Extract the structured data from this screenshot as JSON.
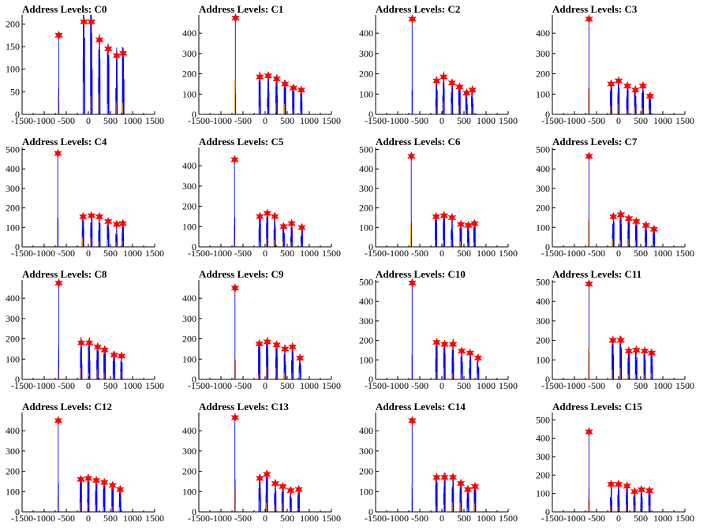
{
  "colors": {
    "histogram": "#0000ff",
    "secondary": "#ff8800",
    "marker": "#ff0000",
    "axis": "#000000"
  },
  "chart_data": [
    {
      "type": "bar",
      "title": "Address Levels: C0",
      "xlim": [
        -1500,
        1500
      ],
      "ylim": [
        0,
        220
      ],
      "xticks": [
        "-1500",
        "-1000",
        "-500",
        "0",
        "500",
        "1000",
        "1500"
      ],
      "yticks": [
        "0",
        "50",
        "100",
        "150",
        "200"
      ],
      "peaks": [
        [
          -670,
          175
        ],
        [
          -100,
          205
        ],
        [
          70,
          205
        ],
        [
          250,
          165
        ],
        [
          450,
          145
        ],
        [
          640,
          130
        ],
        [
          790,
          135
        ]
      ]
    },
    {
      "type": "bar",
      "title": "Address Levels: C1",
      "xlim": [
        -1500,
        1500
      ],
      "ylim": [
        0,
        490
      ],
      "xticks": [
        "-1500",
        "-1000",
        "-500",
        "0",
        "500",
        "1000",
        "1500"
      ],
      "yticks": [
        "0",
        "100",
        "200",
        "300",
        "400"
      ],
      "peaks": [
        [
          -670,
          475
        ],
        [
          -120,
          185
        ],
        [
          70,
          190
        ],
        [
          260,
          175
        ],
        [
          450,
          150
        ],
        [
          640,
          130
        ],
        [
          820,
          120
        ]
      ]
    },
    {
      "type": "bar",
      "title": "Address Levels: C2",
      "xlim": [
        -1500,
        1500
      ],
      "ylim": [
        0,
        490
      ],
      "xticks": [
        "-1500",
        "-1000",
        "-500",
        "0",
        "500",
        "1000",
        "1500"
      ],
      "yticks": [
        "0",
        "100",
        "200",
        "300",
        "400"
      ],
      "peaks": [
        [
          -670,
          470
        ],
        [
          -120,
          165
        ],
        [
          40,
          185
        ],
        [
          230,
          155
        ],
        [
          400,
          135
        ],
        [
          560,
          105
        ],
        [
          690,
          120
        ]
      ]
    },
    {
      "type": "bar",
      "title": "Address Levels: C3",
      "xlim": [
        -1500,
        1500
      ],
      "ylim": [
        0,
        490
      ],
      "xticks": [
        "-1500",
        "-1000",
        "-500",
        "0",
        "500",
        "1000",
        "1500"
      ],
      "yticks": [
        "0",
        "100",
        "200",
        "300",
        "400"
      ],
      "peaks": [
        [
          -670,
          470
        ],
        [
          -170,
          150
        ],
        [
          0,
          165
        ],
        [
          200,
          140
        ],
        [
          380,
          120
        ],
        [
          550,
          140
        ],
        [
          710,
          90
        ]
      ]
    },
    {
      "type": "bar",
      "title": "Address Levels: C4",
      "xlim": [
        -1500,
        1500
      ],
      "ylim": [
        0,
        510
      ],
      "xticks": [
        "-1500",
        "-1000",
        "-500",
        "0",
        "500",
        "1000",
        "1500"
      ],
      "yticks": [
        "0",
        "100",
        "200",
        "300",
        "400",
        "500"
      ],
      "peaks": [
        [
          -690,
          480
        ],
        [
          -120,
          155
        ],
        [
          70,
          160
        ],
        [
          250,
          155
        ],
        [
          450,
          130
        ],
        [
          640,
          115
        ],
        [
          780,
          120
        ]
      ]
    },
    {
      "type": "bar",
      "title": "Address Levels: C5",
      "xlim": [
        -1500,
        1500
      ],
      "ylim": [
        0,
        490
      ],
      "xticks": [
        "-1500",
        "-1000",
        "-500",
        "0",
        "500",
        "1000",
        "1500"
      ],
      "yticks": [
        "0",
        "100",
        "200",
        "300",
        "400"
      ],
      "peaks": [
        [
          -690,
          430
        ],
        [
          -120,
          150
        ],
        [
          50,
          165
        ],
        [
          220,
          150
        ],
        [
          420,
          100
        ],
        [
          600,
          115
        ],
        [
          830,
          95
        ]
      ]
    },
    {
      "type": "bar",
      "title": "Address Levels: C6",
      "xlim": [
        -1500,
        1500
      ],
      "ylim": [
        0,
        510
      ],
      "xticks": [
        "-1500",
        "-1000",
        "-500",
        "0",
        "500",
        "1000",
        "1500"
      ],
      "yticks": [
        "0",
        "100",
        "200",
        "300",
        "400",
        "500"
      ],
      "peaks": [
        [
          -690,
          465
        ],
        [
          -130,
          155
        ],
        [
          50,
          160
        ],
        [
          230,
          150
        ],
        [
          430,
          115
        ],
        [
          600,
          110
        ],
        [
          740,
          120
        ]
      ]
    },
    {
      "type": "bar",
      "title": "Address Levels: C7",
      "xlim": [
        -1500,
        1500
      ],
      "ylim": [
        0,
        510
      ],
      "xticks": [
        "-1500",
        "-1000",
        "-500",
        "0",
        "500",
        "1000",
        "1500"
      ],
      "yticks": [
        "0",
        "100",
        "200",
        "300",
        "400",
        "500"
      ],
      "peaks": [
        [
          -670,
          465
        ],
        [
          -120,
          155
        ],
        [
          50,
          165
        ],
        [
          230,
          145
        ],
        [
          400,
          130
        ],
        [
          620,
          110
        ],
        [
          800,
          90
        ]
      ]
    },
    {
      "type": "bar",
      "title": "Address Levels: C8",
      "xlim": [
        -1500,
        1500
      ],
      "ylim": [
        0,
        490
      ],
      "xticks": [
        "-1500",
        "-1000",
        "-500",
        "0",
        "500",
        "1000",
        "1500"
      ],
      "yticks": [
        "0",
        "100",
        "200",
        "300",
        "400"
      ],
      "peaks": [
        [
          -670,
          475
        ],
        [
          -160,
          180
        ],
        [
          20,
          180
        ],
        [
          210,
          160
        ],
        [
          370,
          145
        ],
        [
          580,
          120
        ],
        [
          750,
          115
        ]
      ]
    },
    {
      "type": "bar",
      "title": "Address Levels: C9",
      "xlim": [
        -1500,
        1500
      ],
      "ylim": [
        0,
        490
      ],
      "xticks": [
        "-1500",
        "-1000",
        "-500",
        "0",
        "500",
        "1000",
        "1500"
      ],
      "yticks": [
        "0",
        "100",
        "200",
        "300",
        "400"
      ],
      "peaks": [
        [
          -680,
          450
        ],
        [
          -130,
          175
        ],
        [
          50,
          185
        ],
        [
          260,
          170
        ],
        [
          450,
          150
        ],
        [
          620,
          160
        ],
        [
          790,
          105
        ]
      ]
    },
    {
      "type": "bar",
      "title": "Address Levels: C10",
      "xlim": [
        -1500,
        1500
      ],
      "ylim": [
        0,
        510
      ],
      "xticks": [
        "-1500",
        "-1000",
        "-500",
        "0",
        "500",
        "1000",
        "1500"
      ],
      "yticks": [
        "0",
        "100",
        "200",
        "300",
        "400",
        "500"
      ],
      "peaks": [
        [
          -670,
          495
        ],
        [
          -120,
          190
        ],
        [
          60,
          180
        ],
        [
          250,
          180
        ],
        [
          450,
          145
        ],
        [
          640,
          135
        ],
        [
          820,
          110
        ]
      ]
    },
    {
      "type": "bar",
      "title": "Address Levels: C11",
      "xlim": [
        -1500,
        1500
      ],
      "ylim": [
        0,
        510
      ],
      "xticks": [
        "-1500",
        "-1000",
        "-500",
        "0",
        "500",
        "1000",
        "1500"
      ],
      "yticks": [
        "0",
        "100",
        "200",
        "300",
        "400",
        "500"
      ],
      "peaks": [
        [
          -670,
          490
        ],
        [
          -130,
          200
        ],
        [
          50,
          200
        ],
        [
          230,
          145
        ],
        [
          400,
          150
        ],
        [
          590,
          145
        ],
        [
          750,
          135
        ]
      ]
    },
    {
      "type": "bar",
      "title": "Address Levels: C12",
      "xlim": [
        -1500,
        1500
      ],
      "ylim": [
        0,
        490
      ],
      "xticks": [
        "-1500",
        "-1000",
        "-500",
        "0",
        "500",
        "1000",
        "1500"
      ],
      "yticks": [
        "0",
        "100",
        "200",
        "300",
        "400"
      ],
      "peaks": [
        [
          -680,
          450
        ],
        [
          -170,
          160
        ],
        [
          0,
          165
        ],
        [
          180,
          155
        ],
        [
          360,
          145
        ],
        [
          550,
          130
        ],
        [
          720,
          110
        ]
      ]
    },
    {
      "type": "bar",
      "title": "Address Levels: C13",
      "xlim": [
        -1500,
        1500
      ],
      "ylim": [
        0,
        490
      ],
      "xticks": [
        "-1500",
        "-1000",
        "-500",
        "0",
        "500",
        "1000",
        "1500"
      ],
      "yticks": [
        "0",
        "100",
        "200",
        "300",
        "400"
      ],
      "peaks": [
        [
          -680,
          465
        ],
        [
          -120,
          165
        ],
        [
          40,
          185
        ],
        [
          230,
          140
        ],
        [
          400,
          125
        ],
        [
          580,
          105
        ],
        [
          760,
          110
        ]
      ]
    },
    {
      "type": "bar",
      "title": "Address Levels: C14",
      "xlim": [
        -1500,
        1500
      ],
      "ylim": [
        0,
        490
      ],
      "xticks": [
        "-1500",
        "-1000",
        "-500",
        "0",
        "500",
        "1000",
        "1500"
      ],
      "yticks": [
        "0",
        "100",
        "200",
        "300",
        "400"
      ],
      "peaks": [
        [
          -670,
          450
        ],
        [
          -120,
          170
        ],
        [
          60,
          170
        ],
        [
          250,
          170
        ],
        [
          430,
          140
        ],
        [
          590,
          110
        ],
        [
          750,
          125
        ]
      ]
    },
    {
      "type": "bar",
      "title": "Address Levels: C15",
      "xlim": [
        -1500,
        1500
      ],
      "ylim": [
        0,
        540
      ],
      "xticks": [
        "-1500",
        "-1000",
        "-500",
        "0",
        "500",
        "1000",
        "1500"
      ],
      "yticks": [
        "0",
        "100",
        "200",
        "300",
        "400",
        "500"
      ],
      "peaks": [
        [
          -670,
          435
        ],
        [
          -170,
          150
        ],
        [
          0,
          150
        ],
        [
          190,
          140
        ],
        [
          360,
          110
        ],
        [
          520,
          120
        ],
        [
          700,
          115
        ]
      ]
    }
  ]
}
